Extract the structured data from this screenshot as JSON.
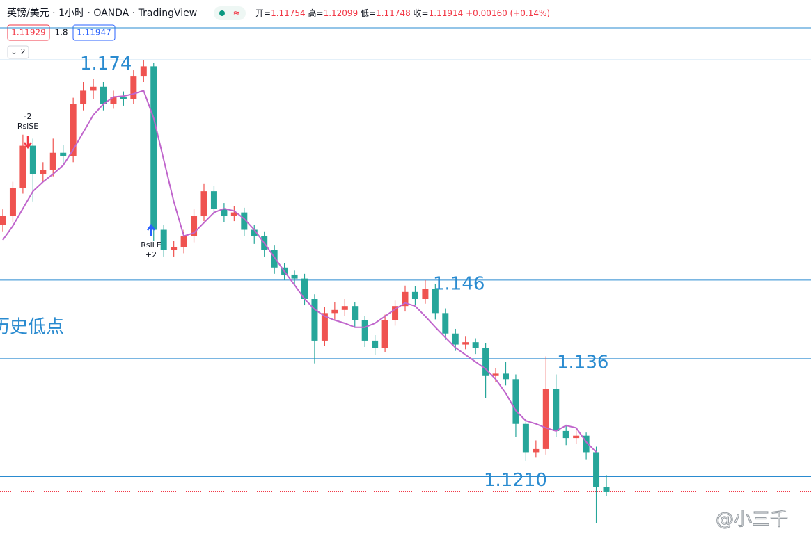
{
  "header": {
    "symbol": "英镑/美元 · 1小时 · OANDA · TradingView",
    "ohlc": [
      {
        "label": "开=",
        "value": 1.11754
      },
      {
        "label": "高=",
        "value": 1.12099
      },
      {
        "label": "低=",
        "value": 1.11748
      },
      {
        "label": "收=",
        "value": 1.11914
      }
    ],
    "change": "+0.00160 (+0.14%)",
    "bid": "1.11929",
    "spread": "1.8",
    "ask": "1.11947",
    "collapse": "2"
  },
  "chart_data": {
    "type": "candlestick",
    "open": [
      1.153,
      1.1542,
      1.1577,
      1.1631,
      1.1595,
      1.16,
      1.1622,
      1.1618,
      1.1684,
      1.1701,
      1.1706,
      1.1684,
      1.1693,
      1.169,
      1.1719,
      1.1732,
      1.1524,
      1.1498,
      1.1502,
      1.1516,
      1.1542,
      1.1573,
      1.1551,
      1.1542,
      1.1546,
      1.1524,
      1.1516,
      1.1498,
      1.1476,
      1.1467,
      1.1462,
      1.1436,
      1.1383,
      1.1418,
      1.1422,
      1.1427,
      1.1409,
      1.1383,
      1.1374,
      1.1409,
      1.1427,
      1.1445,
      1.1436,
      1.1449,
      1.1418,
      1.1392,
      1.1378,
      1.1381,
      1.1374,
      1.1338,
      1.1341,
      1.1334,
      1.1277,
      1.1241,
      1.1245,
      1.1321,
      1.1268,
      1.1259,
      1.1262,
      1.1241,
      1.1197
    ],
    "high": [
      1.155,
      1.1585,
      1.1645,
      1.164,
      1.161,
      1.164,
      1.1632,
      1.1692,
      1.1712,
      1.1716,
      1.1712,
      1.1701,
      1.17,
      1.1727,
      1.174,
      1.1736,
      1.153,
      1.151,
      1.1524,
      1.155,
      1.1583,
      1.158,
      1.1558,
      1.1554,
      1.1552,
      1.153,
      1.1522,
      1.1504,
      1.1482,
      1.1472,
      1.1468,
      1.1442,
      1.1426,
      1.1432,
      1.1436,
      1.1432,
      1.1414,
      1.139,
      1.1416,
      1.1434,
      1.1453,
      1.1452,
      1.146,
      1.1455,
      1.1424,
      1.1398,
      1.1388,
      1.1386,
      1.138,
      1.1348,
      1.1356,
      1.134,
      1.1284,
      1.1256,
      1.1363,
      1.134,
      1.1276,
      1.1272,
      1.1266,
      1.1248,
      1.1212
    ],
    "low": [
      1.1522,
      1.1534,
      1.157,
      1.156,
      1.1585,
      1.1592,
      1.1608,
      1.161,
      1.1676,
      1.169,
      1.1676,
      1.1678,
      1.1682,
      1.1684,
      1.1712,
      1.151,
      1.149,
      1.149,
      1.1494,
      1.1508,
      1.1535,
      1.1543,
      1.1534,
      1.1535,
      1.1516,
      1.1506,
      1.149,
      1.1468,
      1.146,
      1.1455,
      1.1428,
      1.1354,
      1.1376,
      1.141,
      1.1414,
      1.14,
      1.1375,
      1.1365,
      1.1368,
      1.1402,
      1.142,
      1.1428,
      1.143,
      1.141,
      1.1384,
      1.137,
      1.1372,
      1.1366,
      1.131,
      1.133,
      1.1326,
      1.126,
      1.123,
      1.1234,
      1.1238,
      1.126,
      1.125,
      1.1252,
      1.1232,
      1.1151,
      1.1185
    ],
    "close": [
      1.1542,
      1.1577,
      1.1631,
      1.1595,
      1.16,
      1.1622,
      1.1618,
      1.1684,
      1.1701,
      1.1706,
      1.1684,
      1.1693,
      1.169,
      1.1719,
      1.1732,
      1.1524,
      1.1498,
      1.1502,
      1.1516,
      1.1542,
      1.1573,
      1.1551,
      1.1542,
      1.1546,
      1.1524,
      1.1516,
      1.1498,
      1.1476,
      1.1467,
      1.1462,
      1.1436,
      1.1383,
      1.1418,
      1.1422,
      1.1427,
      1.1409,
      1.1383,
      1.1374,
      1.1409,
      1.1427,
      1.1445,
      1.1436,
      1.1449,
      1.1418,
      1.1392,
      1.1378,
      1.1381,
      1.1374,
      1.1338,
      1.1341,
      1.1334,
      1.1277,
      1.1241,
      1.1245,
      1.1321,
      1.1268,
      1.1259,
      1.1262,
      1.1241,
      1.1197,
      1.1191
    ],
    "up_color": "#ef5350",
    "down_color": "#26a69a",
    "ylim": [
      1.1114,
      1.1781
    ],
    "ma": {
      "color": "#c065cc",
      "values": [
        1.1511,
        1.1529,
        1.1551,
        1.1573,
        1.1585,
        1.1595,
        1.1606,
        1.1626,
        1.1648,
        1.167,
        1.1684,
        1.1693,
        1.1694,
        1.1697,
        1.1701,
        1.1666,
        1.1613,
        1.156,
        1.1516,
        1.152,
        1.1533,
        1.1546,
        1.1551,
        1.1548,
        1.1538,
        1.1524,
        1.1507,
        1.1489,
        1.1471,
        1.1454,
        1.1436,
        1.1423,
        1.1414,
        1.1409,
        1.1405,
        1.14,
        1.14,
        1.1405,
        1.1414,
        1.1423,
        1.1431,
        1.1427,
        1.1414,
        1.14,
        1.1387,
        1.1374,
        1.1365,
        1.1356,
        1.1347,
        1.1334,
        1.1316,
        1.1294,
        1.1281,
        1.1277,
        1.1272,
        1.1268,
        1.1275,
        1.1272,
        1.1254,
        1.1241,
        null
      ]
    },
    "levels": [
      1.174,
      1.146,
      1.136,
      {
        "value": 1.121,
        "label": "1.1210"
      }
    ],
    "level_color": "#2a8bd0",
    "annotation": "历史低点",
    "signals": [
      {
        "qty": "-2",
        "name": "RsiSE"
      },
      {
        "name": "RsiLE",
        "qty": "+2"
      }
    ],
    "watermark": "@小三千"
  }
}
